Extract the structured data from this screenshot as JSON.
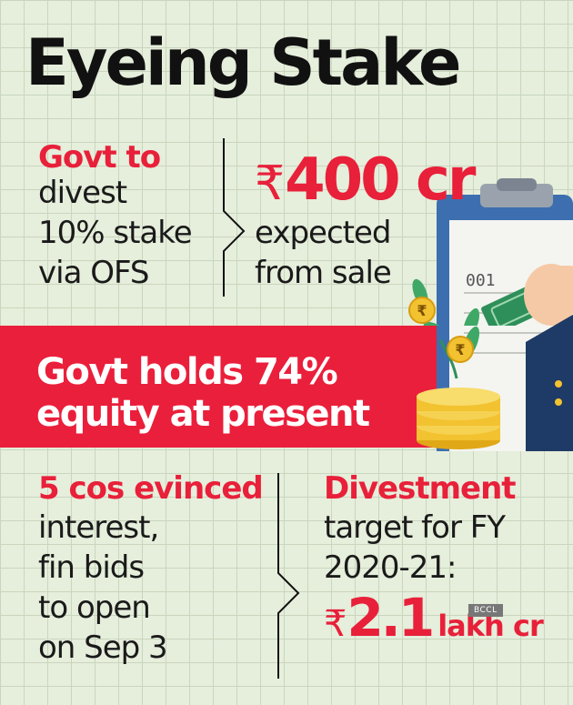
{
  "title": "Eyeing Stake",
  "block_divest": {
    "lead": "Govt to",
    "lines": [
      "divest",
      "10% stake",
      "via OFS"
    ]
  },
  "block_sale": {
    "currency": "₹",
    "amount": "400 cr",
    "lines": [
      "expected",
      "from sale"
    ]
  },
  "banner": {
    "lines": [
      "Govt holds 74%",
      "equity at present"
    ]
  },
  "block_interest": {
    "lead": "5 cos evinced",
    "lines": [
      "interest,",
      "fin bids",
      "to open",
      "on Sep 3"
    ]
  },
  "block_target": {
    "lead": "Divestment",
    "lines": [
      "target for FY",
      "2020-21:"
    ],
    "currency": "₹",
    "amount": "2.1",
    "unit": "lakh cr"
  },
  "illustration": {
    "doc_number": "001",
    "coin_symbol_1": "₹",
    "coin_symbol_2": "₹"
  },
  "credit": "BCCL",
  "colors": {
    "accent_red": "#e8203a",
    "banner_red": "#ea1f3b",
    "background": "#e6eedc",
    "grid": "#c9d6bd",
    "clipboard_blue": "#3d6fb0",
    "coin_gold": "#f2c230",
    "cash_green": "#2f8f5a",
    "sleeve_navy": "#1e3a66",
    "hand_skin": "#f6c9a6"
  }
}
